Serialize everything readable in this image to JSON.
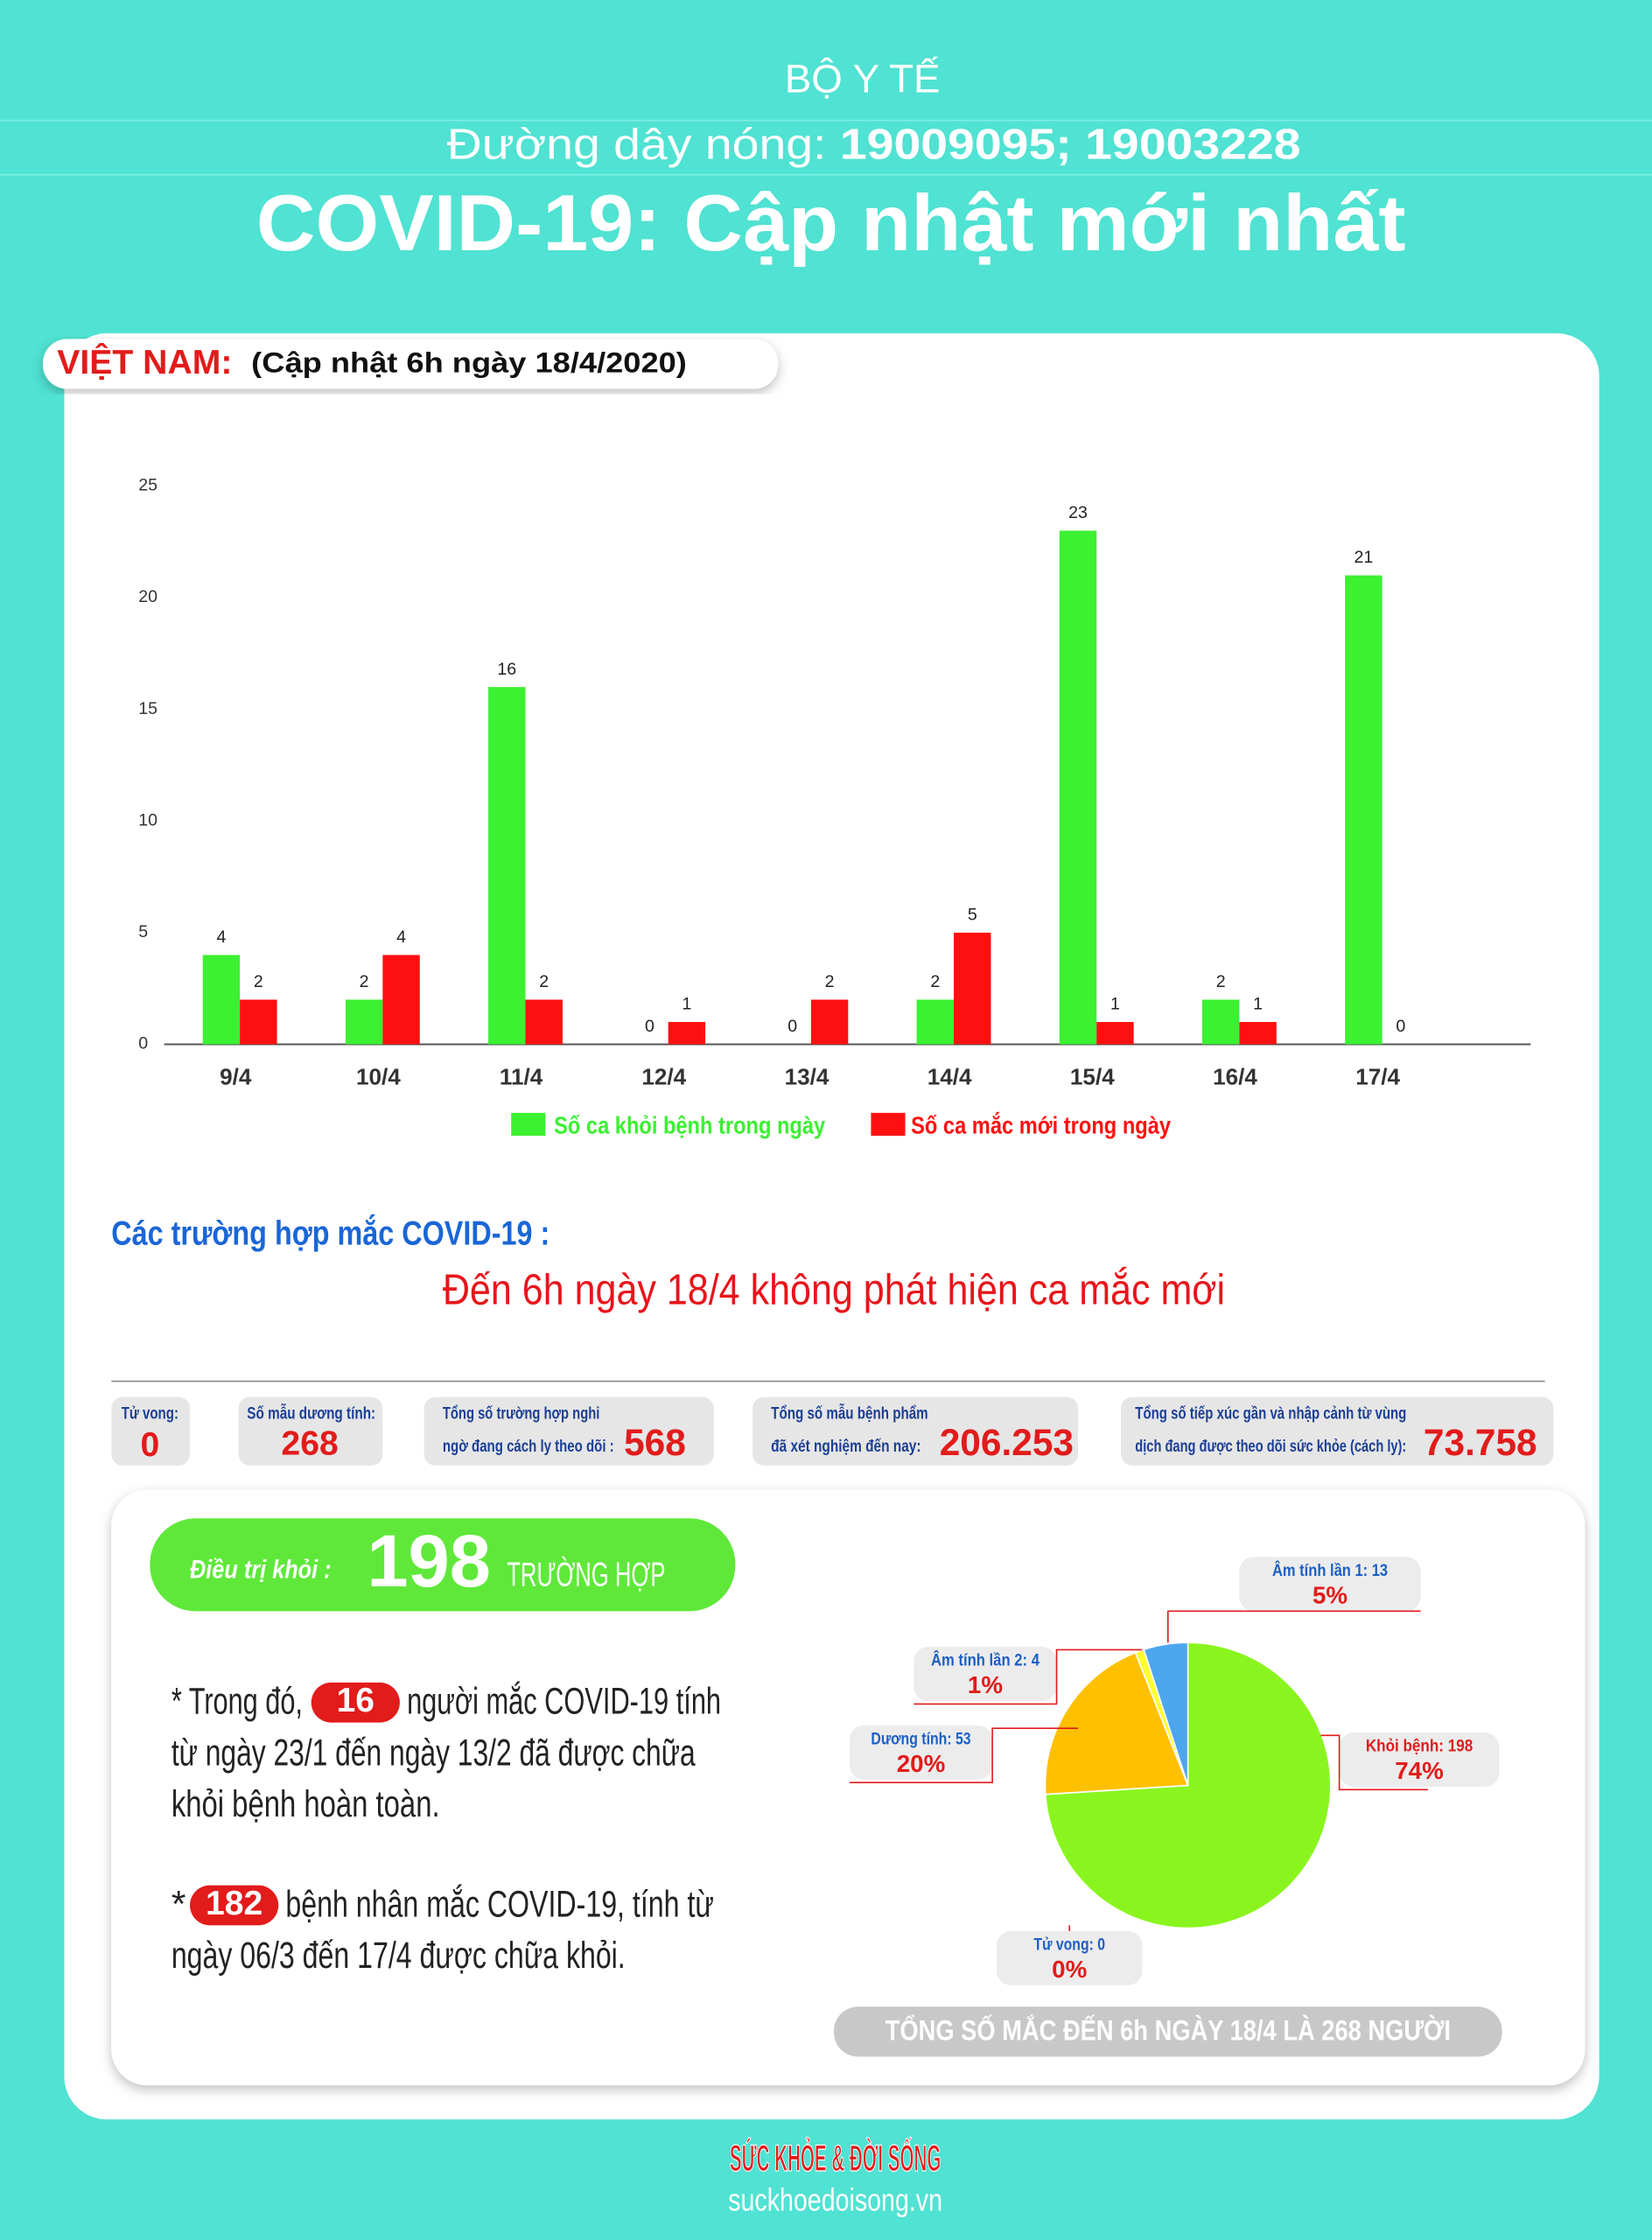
{
  "header": {
    "ministry": "BỘ Y TẾ",
    "hotline_label": "Đường dây nóng:",
    "hotline_numbers": "19009095; 19003228",
    "title": "COVID-19: Cập nhật mới nhất"
  },
  "update": {
    "country": "VIỆT NAM:",
    "time": "(Cập nhật 6h ngày 18/4/2020)"
  },
  "chart_data": [
    {
      "type": "bar",
      "categories": [
        "9/4",
        "10/4",
        "11/4",
        "12/4",
        "13/4",
        "14/4",
        "15/4",
        "16/4",
        "17/4"
      ],
      "series": [
        {
          "name": "Số ca khỏi bệnh trong ngày",
          "color": "#3cf032",
          "values": [
            4,
            2,
            16,
            0,
            0,
            2,
            23,
            2,
            21
          ]
        },
        {
          "name": "Số ca mắc mới  trong ngày",
          "color": "#ff1010",
          "values": [
            2,
            4,
            2,
            1,
            2,
            5,
            1,
            1,
            0
          ]
        }
      ],
      "ylim": [
        0,
        25
      ],
      "yticks": [
        0,
        5,
        10,
        15,
        20,
        25
      ],
      "grid": false
    },
    {
      "type": "pie",
      "categories": [
        "Khỏi bệnh: 198",
        "Dương tính: 53",
        "Âm tính lần 2: 4",
        "Âm tính lần 1: 13",
        "Tử vong: 0"
      ],
      "values": [
        74,
        20,
        1,
        5,
        0
      ],
      "value_labels": [
        "74%",
        "20%",
        "1%",
        "5%",
        "0%"
      ],
      "colors": [
        "#8af51e",
        "#ffc000",
        "#ffff33",
        "#4da6ee",
        "#999999"
      ]
    }
  ],
  "cases": {
    "heading": "Các trường hợp mắc COVID-19 :",
    "message": "Đến 6h ngày 18/4 không phát hiện ca mắc mới"
  },
  "stats": [
    {
      "label": [
        "Tử vong:"
      ],
      "value": "0"
    },
    {
      "label": [
        "Số mẫu dương tính:"
      ],
      "value": "268"
    },
    {
      "label": [
        "Tổng số trường hợp nghi",
        "ngờ đang cách ly theo dõi :"
      ],
      "value": "568"
    },
    {
      "label": [
        "Tổng số mẫu bệnh phẩm",
        "đã xét nghiệm đến nay:"
      ],
      "value": "206.253"
    },
    {
      "label": [
        "Tổng số tiếp xúc gần và nhập cảnh từ vùng",
        "dịch đang được theo dõi sức khỏe (cách ly):"
      ],
      "value": "73.758"
    }
  ],
  "recovered": {
    "label": "Điều trị khỏi :",
    "count": "198",
    "unit": "TRƯỜNG HỢP"
  },
  "notes": [
    {
      "prefix": "* Trong đó,",
      "count": "16",
      "lines": [
        "người mắc COVID-19 tính",
        "từ ngày 23/1 đến ngày 13/2 đã được chữa",
        "khỏi bệnh hoàn toàn."
      ]
    },
    {
      "prefix": "*",
      "count": "182",
      "lines": [
        "bệnh nhân  mắc COVID-19, tính từ",
        "ngày 06/3 đến 17/4 được chữa khỏi."
      ]
    }
  ],
  "total": "TỔNG SỐ MẮC ĐẾN 6h NGÀY 18/4 LÀ 268 NGƯỜI",
  "footer": {
    "logo": "SỨC KHỎE & ĐỜI SỐNG",
    "site": "suckhoedoisong.vn"
  }
}
